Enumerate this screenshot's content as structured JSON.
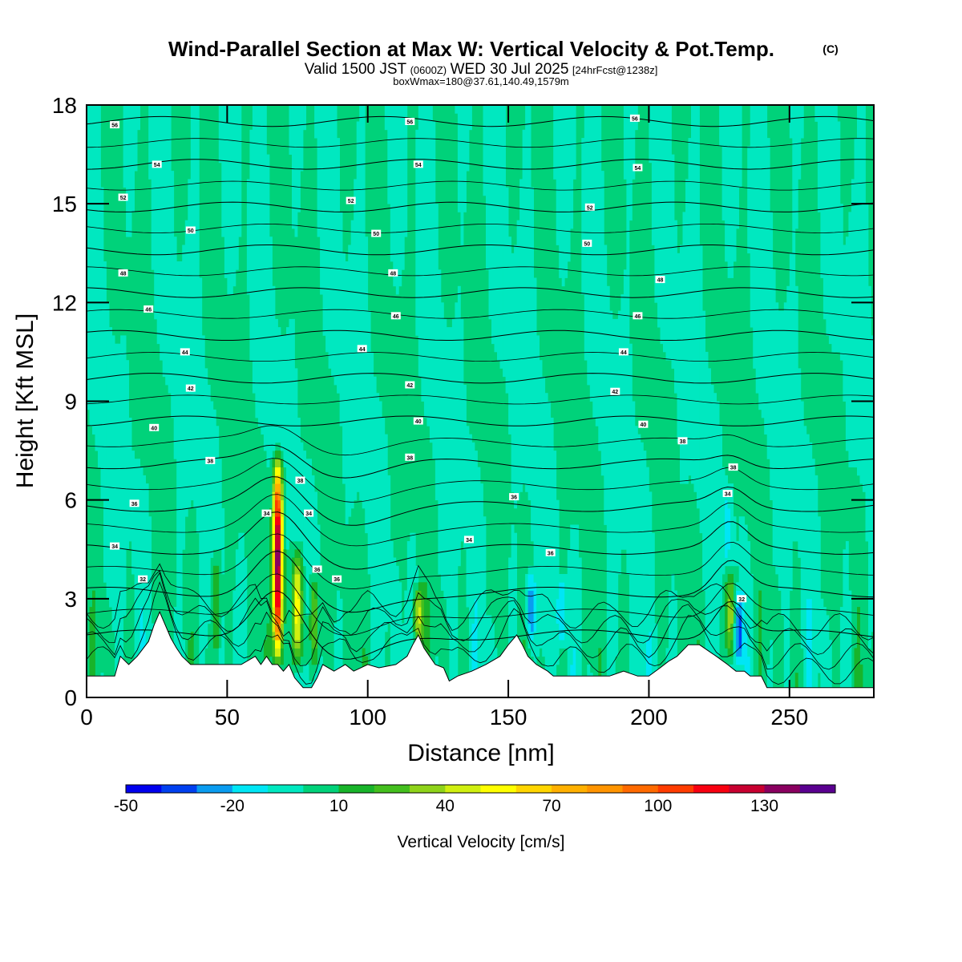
{
  "title": {
    "main": "Wind-Parallel Section at Max W: Vertical Velocity & Pot.Temp.",
    "copyright": "(C)",
    "valid_prefix": "Valid 1500 JST",
    "valid_utc": "(0600Z)",
    "valid_date": "WED 30 Jul 2025",
    "forecast": "[24hrFcst@1238z]",
    "box": "boxWmax=180@37.61,140.49,1579m"
  },
  "chart_data": {
    "type": "heatmap",
    "xlabel": "Distance [nm]",
    "ylabel": "Height [Kft MSL]",
    "xlim": [
      0,
      280
    ],
    "ylim": [
      0,
      18
    ],
    "xticks": [
      0,
      50,
      100,
      150,
      200,
      250
    ],
    "yticks": [
      0,
      3,
      6,
      9,
      12,
      15,
      18
    ],
    "colorbar": {
      "label": "Vertical Velocity [cm/s]",
      "levels": [
        -50,
        -40,
        -30,
        -20,
        -10,
        0,
        10,
        20,
        30,
        40,
        50,
        60,
        70,
        80,
        90,
        100,
        110,
        120,
        130,
        140,
        150
      ],
      "tick_labels": [
        -50,
        -20,
        10,
        40,
        70,
        100,
        130
      ],
      "colors": [
        "#0000ee",
        "#0040f0",
        "#0a9cf0",
        "#00e6f5",
        "#00e8c0",
        "#00d27a",
        "#18b42a",
        "#44bf1e",
        "#8fd31a",
        "#d0ef10",
        "#ffff00",
        "#ffd500",
        "#ffb000",
        "#ff9400",
        "#ff6a00",
        "#ff3c00",
        "#f80010",
        "#c80030",
        "#8a0060",
        "#5a0090"
      ]
    },
    "velocity_features": [
      {
        "x": 68,
        "zmin": 1.0,
        "zmax": 7.4,
        "w": 150
      },
      {
        "x": 75,
        "zmin": 1.0,
        "zmax": 4.5,
        "w": 60
      },
      {
        "x": 81,
        "zmin": 0.6,
        "zmax": 3.8,
        "w": 40
      },
      {
        "x": 46,
        "zmin": 1.0,
        "zmax": 4.5,
        "w": 30
      },
      {
        "x": 118,
        "zmin": 1.6,
        "zmax": 3.2,
        "w": 45
      },
      {
        "x": 229,
        "zmin": 1.2,
        "zmax": 3.8,
        "w": 40
      },
      {
        "x": 158,
        "zmin": 1.6,
        "zmax": 3.8,
        "w": -30
      },
      {
        "x": 169,
        "zmin": 1.6,
        "zmax": 3.6,
        "w": -25
      },
      {
        "x": 232,
        "zmin": 1.0,
        "zmax": 3.2,
        "w": -35
      },
      {
        "x": 228,
        "zmin": 4.0,
        "zmax": 6.4,
        "w": -15
      }
    ],
    "terrain": {
      "x": [
        0,
        10,
        11,
        12,
        15,
        18,
        22,
        24,
        26,
        28,
        30,
        32,
        34,
        37,
        40,
        55,
        60,
        62,
        64,
        66,
        68,
        70,
        72,
        74,
        77,
        80,
        82,
        84,
        88,
        92,
        95,
        100,
        104,
        110,
        114,
        116,
        118,
        120,
        122,
        124,
        127,
        129,
        132,
        137,
        142,
        147,
        150,
        153,
        155,
        157,
        160,
        164,
        166,
        170,
        175,
        180,
        186,
        191,
        196,
        200,
        204,
        207,
        210,
        214,
        218,
        224,
        228,
        231,
        234,
        236,
        240,
        242,
        244,
        248,
        252,
        280
      ],
      "h": [
        0.65,
        0.65,
        0.95,
        1.25,
        1.0,
        1.25,
        1.7,
        2.2,
        2.6,
        2.2,
        1.8,
        1.5,
        1.25,
        1.0,
        1.0,
        1.0,
        1.25,
        1.0,
        1.25,
        1.0,
        1.0,
        0.8,
        1.0,
        0.6,
        0.3,
        0.3,
        0.6,
        1.0,
        0.8,
        1.0,
        0.8,
        1.0,
        0.9,
        1.0,
        1.25,
        1.6,
        1.9,
        1.5,
        1.25,
        1.0,
        0.9,
        0.5,
        0.65,
        0.8,
        1.0,
        1.25,
        1.6,
        1.9,
        1.6,
        1.25,
        1.0,
        0.8,
        0.65,
        0.65,
        0.65,
        0.65,
        0.65,
        0.8,
        0.65,
        0.65,
        0.9,
        1.1,
        1.25,
        1.6,
        1.6,
        1.25,
        1.0,
        0.8,
        0.8,
        0.65,
        0.65,
        0.3,
        0.3,
        0.3,
        0.3,
        0.3
      ]
    },
    "isentropes": {
      "levels": [
        32,
        34,
        36,
        38,
        40,
        42,
        44,
        46,
        48,
        50,
        52,
        54,
        56
      ],
      "labels": [
        {
          "text": "32",
          "x": 20,
          "z": 3.6
        },
        {
          "text": "32",
          "x": 233,
          "z": 3.0
        },
        {
          "text": "34",
          "x": 10,
          "z": 4.6
        },
        {
          "text": "34",
          "x": 64,
          "z": 5.6
        },
        {
          "text": "34",
          "x": 79,
          "z": 5.6
        },
        {
          "text": "34",
          "x": 136,
          "z": 4.8
        },
        {
          "text": "34",
          "x": 228,
          "z": 6.2
        },
        {
          "text": "36",
          "x": 17,
          "z": 5.9
        },
        {
          "text": "36",
          "x": 82,
          "z": 3.9
        },
        {
          "text": "36",
          "x": 89,
          "z": 3.6
        },
        {
          "text": "36",
          "x": 152,
          "z": 6.1
        },
        {
          "text": "36",
          "x": 165,
          "z": 4.4
        },
        {
          "text": "38",
          "x": 44,
          "z": 7.2
        },
        {
          "text": "38",
          "x": 76,
          "z": 6.6
        },
        {
          "text": "38",
          "x": 115,
          "z": 7.3
        },
        {
          "text": "38",
          "x": 212,
          "z": 7.8
        },
        {
          "text": "38",
          "x": 230,
          "z": 7.0
        },
        {
          "text": "40",
          "x": 24,
          "z": 8.2
        },
        {
          "text": "40",
          "x": 118,
          "z": 8.4
        },
        {
          "text": "40",
          "x": 198,
          "z": 8.3
        },
        {
          "text": "42",
          "x": 37,
          "z": 9.4
        },
        {
          "text": "42",
          "x": 115,
          "z": 9.5
        },
        {
          "text": "42",
          "x": 188,
          "z": 9.3
        },
        {
          "text": "44",
          "x": 35,
          "z": 10.5
        },
        {
          "text": "44",
          "x": 98,
          "z": 10.6
        },
        {
          "text": "44",
          "x": 191,
          "z": 10.5
        },
        {
          "text": "46",
          "x": 22,
          "z": 11.8
        },
        {
          "text": "46",
          "x": 110,
          "z": 11.6
        },
        {
          "text": "46",
          "x": 196,
          "z": 11.6
        },
        {
          "text": "48",
          "x": 13,
          "z": 12.9
        },
        {
          "text": "48",
          "x": 109,
          "z": 12.9
        },
        {
          "text": "48",
          "x": 204,
          "z": 12.7
        },
        {
          "text": "50",
          "x": 37,
          "z": 14.2
        },
        {
          "text": "50",
          "x": 103,
          "z": 14.1
        },
        {
          "text": "50",
          "x": 178,
          "z": 13.8
        },
        {
          "text": "52",
          "x": 13,
          "z": 15.2
        },
        {
          "text": "52",
          "x": 94,
          "z": 15.1
        },
        {
          "text": "52",
          "x": 179,
          "z": 14.9
        },
        {
          "text": "54",
          "x": 25,
          "z": 16.2
        },
        {
          "text": "54",
          "x": 118,
          "z": 16.2
        },
        {
          "text": "54",
          "x": 196,
          "z": 16.1
        },
        {
          "text": "56",
          "x": 10,
          "z": 17.4
        },
        {
          "text": "56",
          "x": 115,
          "z": 17.5
        },
        {
          "text": "56",
          "x": 195,
          "z": 17.6
        }
      ]
    }
  }
}
